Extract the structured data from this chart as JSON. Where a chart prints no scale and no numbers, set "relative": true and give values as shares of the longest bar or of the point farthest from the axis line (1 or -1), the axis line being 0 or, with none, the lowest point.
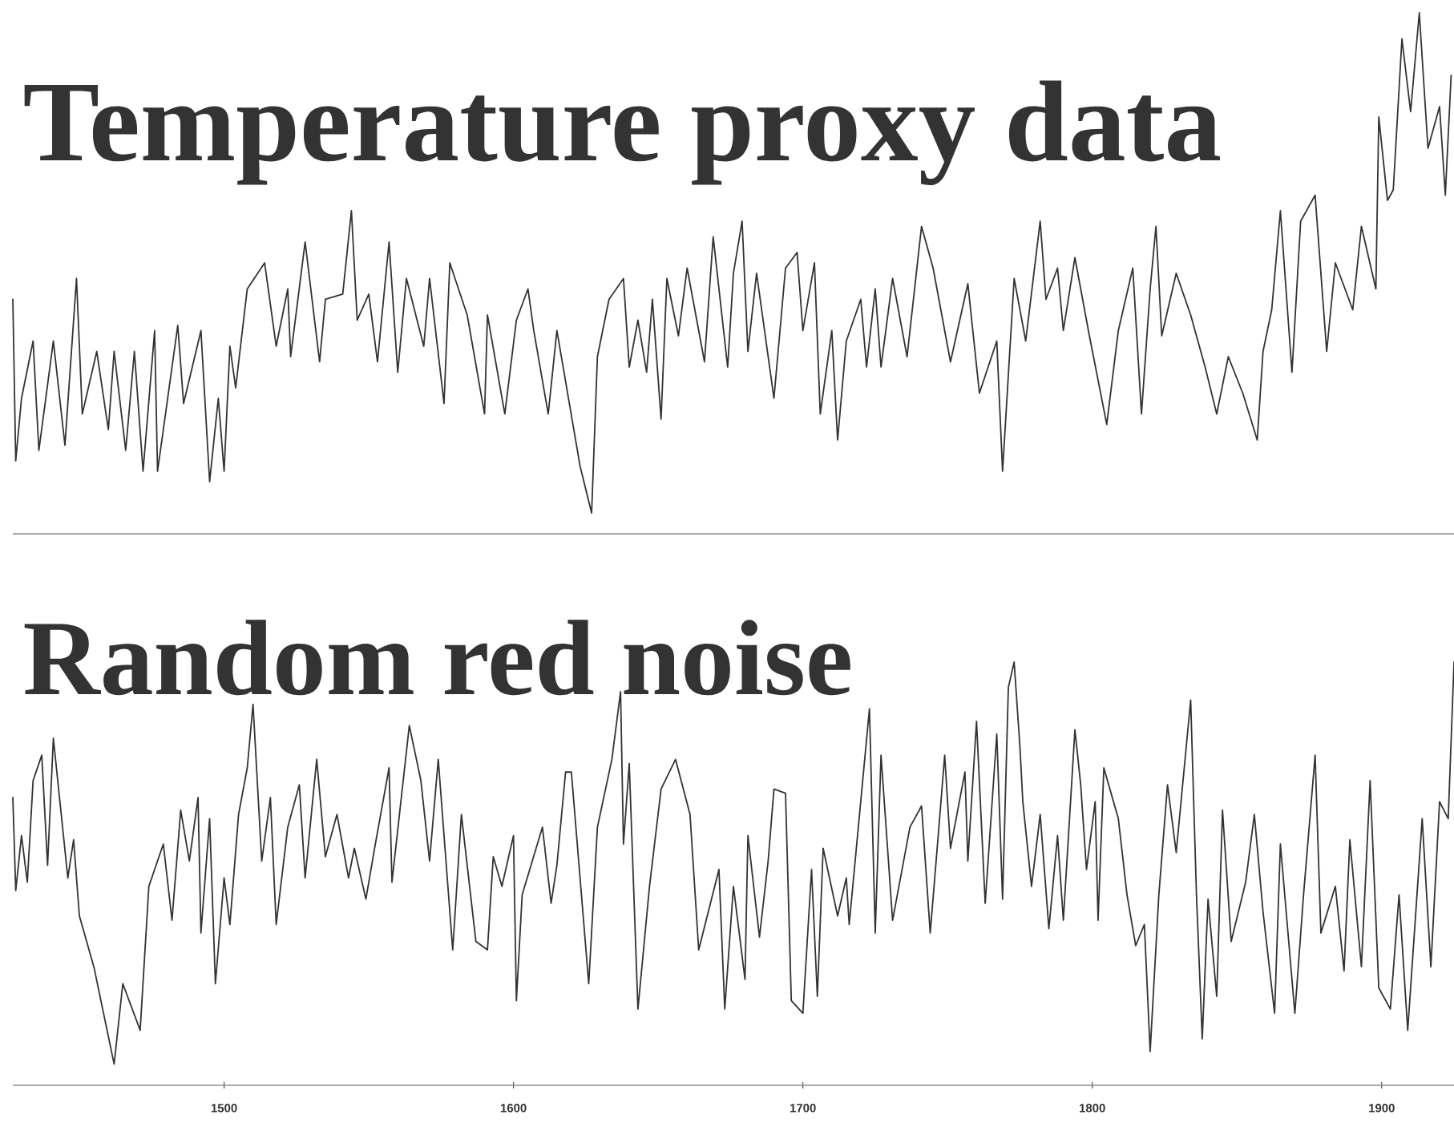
{
  "chart_data": [
    {
      "type": "line",
      "title": "Temperature proxy data",
      "relative": true,
      "xlim": [
        1427,
        1925
      ],
      "tick_labels": false,
      "series": [
        {
          "color": "#333333",
          "x": [
            1427,
            1428,
            1430,
            1434,
            1436,
            1441,
            1445,
            1449,
            1451,
            1456,
            1460,
            1462,
            1466,
            1469,
            1472,
            1476,
            1477,
            1484,
            1486,
            1492,
            1495,
            1498,
            1500,
            1502,
            1504,
            1508,
            1514,
            1518,
            1522,
            1523,
            1528,
            1533,
            1535,
            1541,
            1544,
            1546,
            1550,
            1553,
            1557,
            1560,
            1563,
            1569,
            1571,
            1576,
            1578,
            1584,
            1590,
            1591,
            1597,
            1601,
            1605,
            1607,
            1612,
            1615,
            1623,
            1627,
            1629,
            1633,
            1638,
            1640,
            1643,
            1646,
            1648,
            1651,
            1653,
            1657,
            1660,
            1666,
            1669,
            1674,
            1676,
            1679,
            1681,
            1684,
            1690,
            1694,
            1698,
            1700,
            1704,
            1706,
            1710,
            1712,
            1715,
            1720,
            1722,
            1725,
            1727,
            1731,
            1736,
            1741,
            1745,
            1751,
            1757,
            1761,
            1767,
            1769,
            1773,
            1777,
            1782,
            1784,
            1788,
            1790,
            1794,
            1799,
            1805,
            1809,
            1814,
            1817,
            1820,
            1822,
            1824,
            1829,
            1834,
            1839,
            1843,
            1847,
            1852,
            1857,
            1859,
            1862,
            1865,
            1869,
            1872,
            1877,
            1881,
            1884,
            1890,
            1893,
            1898,
            1899,
            1902,
            1904,
            1907,
            1910,
            1913,
            1916,
            1920,
            1922,
            1924
          ],
          "values": [
            0.45,
            0.14,
            0.26,
            0.37,
            0.16,
            0.37,
            0.17,
            0.49,
            0.23,
            0.35,
            0.2,
            0.35,
            0.16,
            0.35,
            0.12,
            0.39,
            0.12,
            0.4,
            0.25,
            0.39,
            0.1,
            0.26,
            0.12,
            0.36,
            0.28,
            0.47,
            0.52,
            0.36,
            0.47,
            0.34,
            0.56,
            0.33,
            0.45,
            0.46,
            0.62,
            0.41,
            0.46,
            0.33,
            0.56,
            0.31,
            0.49,
            0.36,
            0.49,
            0.25,
            0.52,
            0.42,
            0.23,
            0.42,
            0.23,
            0.41,
            0.47,
            0.39,
            0.23,
            0.39,
            0.13,
            0.04,
            0.34,
            0.45,
            0.49,
            0.32,
            0.41,
            0.31,
            0.45,
            0.22,
            0.49,
            0.38,
            0.51,
            0.33,
            0.57,
            0.32,
            0.5,
            0.6,
            0.35,
            0.5,
            0.26,
            0.51,
            0.54,
            0.39,
            0.52,
            0.23,
            0.39,
            0.18,
            0.37,
            0.45,
            0.32,
            0.47,
            0.32,
            0.49,
            0.34,
            0.59,
            0.51,
            0.33,
            0.48,
            0.27,
            0.37,
            0.12,
            0.49,
            0.37,
            0.6,
            0.45,
            0.51,
            0.39,
            0.53,
            0.38,
            0.21,
            0.39,
            0.51,
            0.23,
            0.47,
            0.59,
            0.38,
            0.5,
            0.42,
            0.32,
            0.23,
            0.34,
            0.27,
            0.18,
            0.35,
            0.43,
            0.62,
            0.31,
            0.6,
            0.65,
            0.35,
            0.52,
            0.43,
            0.59,
            0.47,
            0.8,
            0.64,
            0.66,
            0.95,
            0.81,
            1.0,
            0.74,
            0.82,
            0.65,
            0.88
          ]
        }
      ]
    },
    {
      "type": "line",
      "title": "Random red noise",
      "relative": true,
      "xlim": [
        1427,
        1925
      ],
      "xticks": [
        1500,
        1600,
        1700,
        1800,
        1900
      ],
      "tick_labels": "x",
      "series": [
        {
          "color": "#333333",
          "x": [
            1427,
            1428,
            1430,
            1432,
            1434,
            1437,
            1439,
            1441,
            1446,
            1448,
            1450,
            1455,
            1462,
            1465,
            1471,
            1474,
            1479,
            1482,
            1485,
            1488,
            1491,
            1492,
            1495,
            1497,
            1500,
            1502,
            1505,
            1508,
            1510,
            1513,
            1516,
            1518,
            1522,
            1526,
            1528,
            1532,
            1535,
            1539,
            1543,
            1545,
            1549,
            1552,
            1557,
            1558,
            1564,
            1568,
            1571,
            1574,
            1579,
            1582,
            1587,
            1591,
            1593,
            1596,
            1600,
            1601,
            1603,
            1610,
            1613,
            1615,
            1618,
            1620,
            1626,
            1629,
            1634,
            1637,
            1638,
            1640,
            1643,
            1647,
            1651,
            1656,
            1661,
            1664,
            1671,
            1673,
            1676,
            1680,
            1681,
            1685,
            1688,
            1690,
            1694,
            1696,
            1700,
            1703,
            1705,
            1707,
            1712,
            1715,
            1716,
            1723,
            1725,
            1727,
            1731,
            1737,
            1741,
            1744,
            1747,
            1749,
            1751,
            1756,
            1757,
            1760,
            1763,
            1767,
            1769,
            1771,
            1773,
            1775,
            1776,
            1779,
            1782,
            1785,
            1788,
            1790,
            1794,
            1796,
            1798,
            1801,
            1802,
            1804,
            1809,
            1812,
            1815,
            1818,
            1820,
            1823,
            1826,
            1829,
            1834,
            1836,
            1838,
            1840,
            1843,
            1845,
            1848,
            1853,
            1856,
            1859,
            1863,
            1865,
            1870,
            1873,
            1877,
            1879,
            1884,
            1887,
            1889,
            1893,
            1896,
            1899,
            1903,
            1906,
            1909,
            1914,
            1917,
            1920,
            1923,
            1925
          ],
          "values": [
            0.68,
            0.46,
            0.59,
            0.48,
            0.72,
            0.78,
            0.52,
            0.82,
            0.49,
            0.58,
            0.4,
            0.28,
            0.05,
            0.24,
            0.13,
            0.47,
            0.57,
            0.39,
            0.65,
            0.53,
            0.68,
            0.36,
            0.63,
            0.24,
            0.49,
            0.38,
            0.64,
            0.75,
            0.9,
            0.53,
            0.68,
            0.38,
            0.61,
            0.71,
            0.49,
            0.77,
            0.54,
            0.64,
            0.49,
            0.56,
            0.44,
            0.56,
            0.75,
            0.48,
            0.85,
            0.72,
            0.53,
            0.77,
            0.32,
            0.64,
            0.34,
            0.32,
            0.54,
            0.47,
            0.59,
            0.2,
            0.45,
            0.61,
            0.43,
            0.52,
            0.74,
            0.74,
            0.24,
            0.61,
            0.77,
            0.93,
            0.57,
            0.76,
            0.18,
            0.47,
            0.7,
            0.77,
            0.64,
            0.32,
            0.51,
            0.18,
            0.47,
            0.25,
            0.59,
            0.35,
            0.53,
            0.7,
            0.69,
            0.2,
            0.17,
            0.51,
            0.21,
            0.56,
            0.4,
            0.49,
            0.38,
            0.89,
            0.36,
            0.78,
            0.39,
            0.61,
            0.66,
            0.36,
            0.61,
            0.78,
            0.56,
            0.74,
            0.53,
            0.86,
            0.43,
            0.83,
            0.44,
            0.94,
            1.0,
            0.8,
            0.67,
            0.47,
            0.64,
            0.37,
            0.59,
            0.39,
            0.84,
            0.71,
            0.51,
            0.67,
            0.39,
            0.75,
            0.63,
            0.45,
            0.33,
            0.38,
            0.08,
            0.45,
            0.71,
            0.55,
            0.91,
            0.45,
            0.11,
            0.44,
            0.21,
            0.65,
            0.34,
            0.48,
            0.64,
            0.41,
            0.17,
            0.57,
            0.17,
            0.45,
            0.78,
            0.36,
            0.47,
            0.27,
            0.58,
            0.28,
            0.72,
            0.23,
            0.18,
            0.45,
            0.13,
            0.63,
            0.28,
            0.67,
            0.63,
            1.0
          ]
        }
      ]
    }
  ]
}
